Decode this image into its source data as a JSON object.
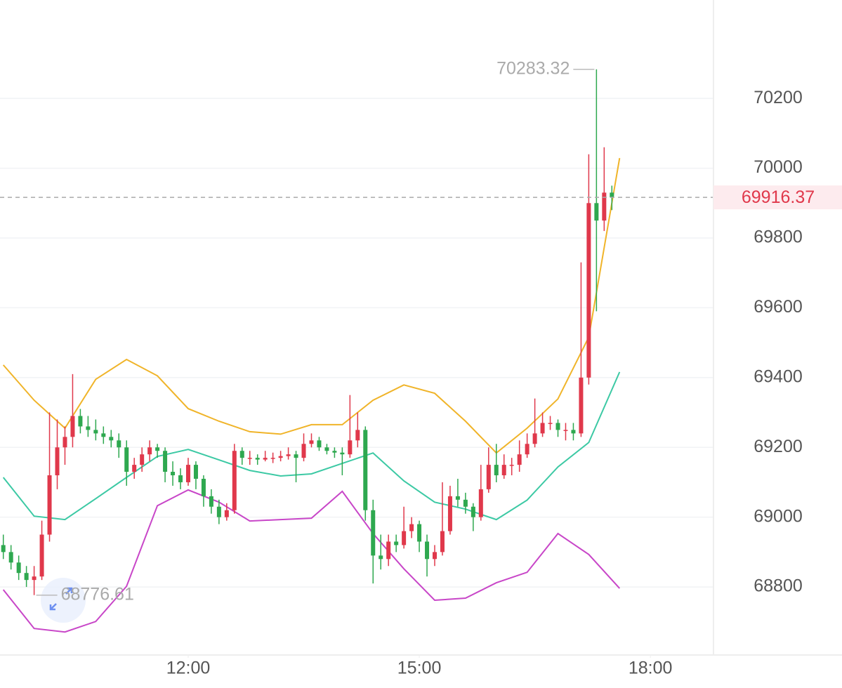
{
  "chart_data": {
    "type": "candlestick",
    "x": [
      9.6,
      9.7,
      9.8,
      9.9,
      10.0,
      10.1,
      10.2,
      10.3,
      10.4,
      10.5,
      10.6,
      10.7,
      10.8,
      10.9,
      11.0,
      11.1,
      11.2,
      11.3,
      11.4,
      11.5,
      11.6,
      11.7,
      11.8,
      11.9,
      12.0,
      12.1,
      12.2,
      12.3,
      12.4,
      12.5,
      12.6,
      12.7,
      12.8,
      12.9,
      13.0,
      13.1,
      13.2,
      13.3,
      13.4,
      13.5,
      13.6,
      13.7,
      13.8,
      13.9,
      14.0,
      14.1,
      14.2,
      14.3,
      14.4,
      14.5,
      14.6,
      14.7,
      14.8,
      14.9,
      15.0,
      15.1,
      15.2,
      15.3,
      15.4,
      15.5,
      15.6,
      15.7,
      15.8,
      15.9,
      16.0,
      16.1,
      16.2,
      16.3,
      16.4,
      16.5,
      16.6,
      16.7,
      16.8,
      16.9,
      17.0,
      17.1,
      17.2,
      17.3,
      17.4,
      17.5
    ],
    "open": [
      68920,
      68900,
      68870,
      68840,
      68820,
      68830,
      68950,
      69120,
      69200,
      69230,
      69290,
      69260,
      69250,
      69240,
      69230,
      69220,
      69200,
      69130,
      69150,
      69180,
      69200,
      69190,
      69130,
      69120,
      69100,
      69150,
      69110,
      69060,
      69030,
      69000,
      69020,
      69190,
      69170,
      69170,
      69165,
      69170,
      69170,
      69175,
      69180,
      69170,
      69210,
      69220,
      69200,
      69190,
      69185,
      69180,
      69220,
      69250,
      69020,
      68890,
      68880,
      68930,
      68920,
      68960,
      68980,
      68930,
      68880,
      68900,
      68960,
      69060,
      69050,
      69030,
      69000,
      69080,
      69150,
      69120,
      69150,
      69150,
      69180,
      69210,
      69240,
      69270,
      69270,
      69250,
      69250,
      69240,
      69400,
      69900,
      69850,
      69930
    ],
    "high": [
      68950,
      68920,
      68890,
      68860,
      68860,
      68990,
      69300,
      69280,
      69260,
      69410,
      69310,
      69290,
      69280,
      69260,
      69250,
      69240,
      69220,
      69170,
      69200,
      69220,
      69210,
      69200,
      69160,
      69140,
      69170,
      69160,
      69120,
      69080,
      69050,
      69040,
      69210,
      69200,
      69190,
      69180,
      69190,
      69185,
      69190,
      69200,
      69190,
      69240,
      69240,
      69230,
      69210,
      69200,
      69200,
      69350,
      69300,
      69260,
      69050,
      68950,
      68950,
      68950,
      69030,
      69000,
      68990,
      68950,
      68920,
      69100,
      69090,
      69110,
      69070,
      69040,
      69150,
      69200,
      69210,
      69180,
      69170,
      69220,
      69240,
      69340,
      69300,
      69290,
      69280,
      69270,
      69270,
      69730,
      70040,
      70283.32,
      70060,
      69950
    ],
    "low": [
      68880,
      68850,
      68820,
      68800,
      68776.61,
      68820,
      68930,
      69080,
      69150,
      69200,
      69240,
      69230,
      69220,
      69210,
      69200,
      69170,
      69090,
      69110,
      69130,
      69160,
      69170,
      69100,
      69090,
      69080,
      69090,
      69080,
      69030,
      69010,
      68980,
      68990,
      69010,
      69150,
      69150,
      69150,
      69160,
      69155,
      69160,
      69165,
      69100,
      69160,
      69200,
      69190,
      69180,
      69170,
      69120,
      69170,
      69200,
      68990,
      68810,
      68850,
      68860,
      68900,
      68910,
      68940,
      68900,
      68830,
      68860,
      68890,
      68950,
      69030,
      69010,
      68960,
      68990,
      69070,
      69100,
      69110,
      69120,
      69130,
      69170,
      69200,
      69230,
      69250,
      69230,
      69220,
      69220,
      69230,
      69380,
      69590,
      69820,
      69880
    ],
    "close": [
      68900,
      68870,
      68840,
      68820,
      68830,
      68950,
      69120,
      69200,
      69230,
      69290,
      69260,
      69250,
      69240,
      69230,
      69220,
      69200,
      69130,
      69150,
      69180,
      69200,
      69190,
      69130,
      69120,
      69100,
      69150,
      69110,
      69060,
      69030,
      69000,
      69020,
      69190,
      69170,
      69170,
      69165,
      69170,
      69170,
      69175,
      69180,
      69170,
      69210,
      69220,
      69200,
      69190,
      69185,
      69180,
      69220,
      69250,
      69020,
      68890,
      68880,
      68930,
      68920,
      68960,
      68980,
      68930,
      68880,
      68900,
      68960,
      69060,
      69050,
      69030,
      69000,
      69080,
      69150,
      69120,
      69150,
      69150,
      69180,
      69210,
      69240,
      69270,
      69270,
      69250,
      69250,
      69240,
      69400,
      69900,
      69850,
      69930,
      69916.37
    ],
    "up_color": "#e0384b",
    "down_color": "#2ea84f",
    "line_x": [
      9.6,
      10.0,
      10.4,
      10.8,
      11.2,
      11.6,
      12.0,
      12.4,
      12.8,
      13.2,
      13.6,
      14.0,
      14.4,
      14.8,
      15.2,
      15.6,
      16.0,
      16.4,
      16.8,
      17.2,
      17.6
    ],
    "lines": [
      {
        "color": "#f0b429",
        "values": [
          69436,
          69335,
          69255,
          69395,
          69452,
          69405,
          69311,
          69275,
          69245,
          69238,
          69265,
          69265,
          69335,
          69379,
          69355,
          69275,
          69184,
          69255,
          69339,
          69516,
          70029
        ]
      },
      {
        "color": "#3cc9a4",
        "values": [
          69114,
          69003,
          68993,
          69053,
          69114,
          69174,
          69194,
          69164,
          69134,
          69118,
          69124,
          69154,
          69184,
          69104,
          69043,
          69023,
          68993,
          69049,
          69144,
          69214,
          69416
        ]
      },
      {
        "color": "#c846c8",
        "values": [
          68792,
          68681,
          68671,
          68701,
          68802,
          69033,
          69078,
          69043,
          68989,
          68993,
          68997,
          69074,
          68953,
          68852,
          68762,
          68768,
          68812,
          68842,
          68953,
          68893,
          68796
        ]
      }
    ],
    "xlim": [
      9.557,
      18.81
    ],
    "ylim": [
      68605,
      70482
    ],
    "xticks": [
      {
        "value": 12,
        "label": "12:00"
      },
      {
        "value": 15,
        "label": "15:00"
      },
      {
        "value": 18,
        "label": "18:00"
      }
    ],
    "yticks": [
      68800,
      69000,
      69200,
      69400,
      69600,
      69800,
      70000,
      70200
    ],
    "grid": true
  }
}
